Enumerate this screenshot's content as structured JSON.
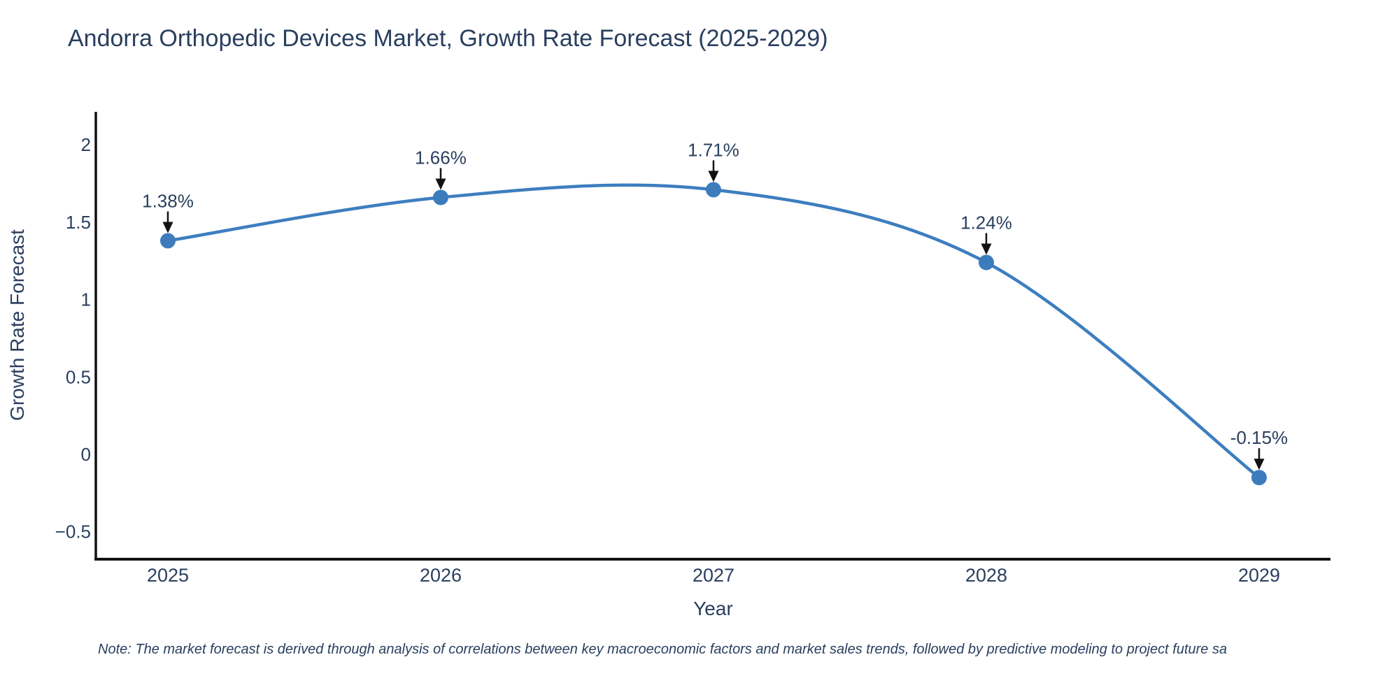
{
  "title": "Andorra Orthopedic Devices Market, Growth Rate Forecast (2025-2029)",
  "note": "Note: The market forecast is derived through analysis of correlations between key macroeconomic factors and market sales trends, followed by predictive modeling to project future sa",
  "chart_data": {
    "type": "line",
    "line_shape": "spline",
    "title": "Andorra Orthopedic Devices Market, Growth Rate Forecast (2025-2029)",
    "x": [
      2025,
      2026,
      2027,
      2028,
      2029
    ],
    "series": [
      {
        "name": "Growth Rate Forecast",
        "values": [
          1.38,
          1.66,
          1.71,
          1.24,
          -0.15
        ],
        "point_labels": [
          "1.38%",
          "1.66%",
          "1.71%",
          "1.24%",
          "-0.15%"
        ]
      }
    ],
    "xlabel": "Year",
    "ylabel": "Growth Rate Forecast",
    "xtick_labels": [
      "2025",
      "2026",
      "2027",
      "2028",
      "2029"
    ],
    "yticks": [
      2,
      1.5,
      1,
      0.5,
      0,
      -0.5
    ],
    "ytick_labels": [
      "2",
      "1.5",
      "1",
      "0.5",
      "0",
      "−0.5"
    ],
    "ylim": [
      -0.68,
      2.19
    ],
    "grid": false,
    "legend": "none",
    "annotations_style": "black-down-arrows",
    "colors": {
      "line": "#3d7ebf",
      "marker": "#3c7cbc",
      "axis": "#111111",
      "text": "#2a3f5f",
      "arrow": "#111111",
      "background": "#ffffff"
    }
  }
}
